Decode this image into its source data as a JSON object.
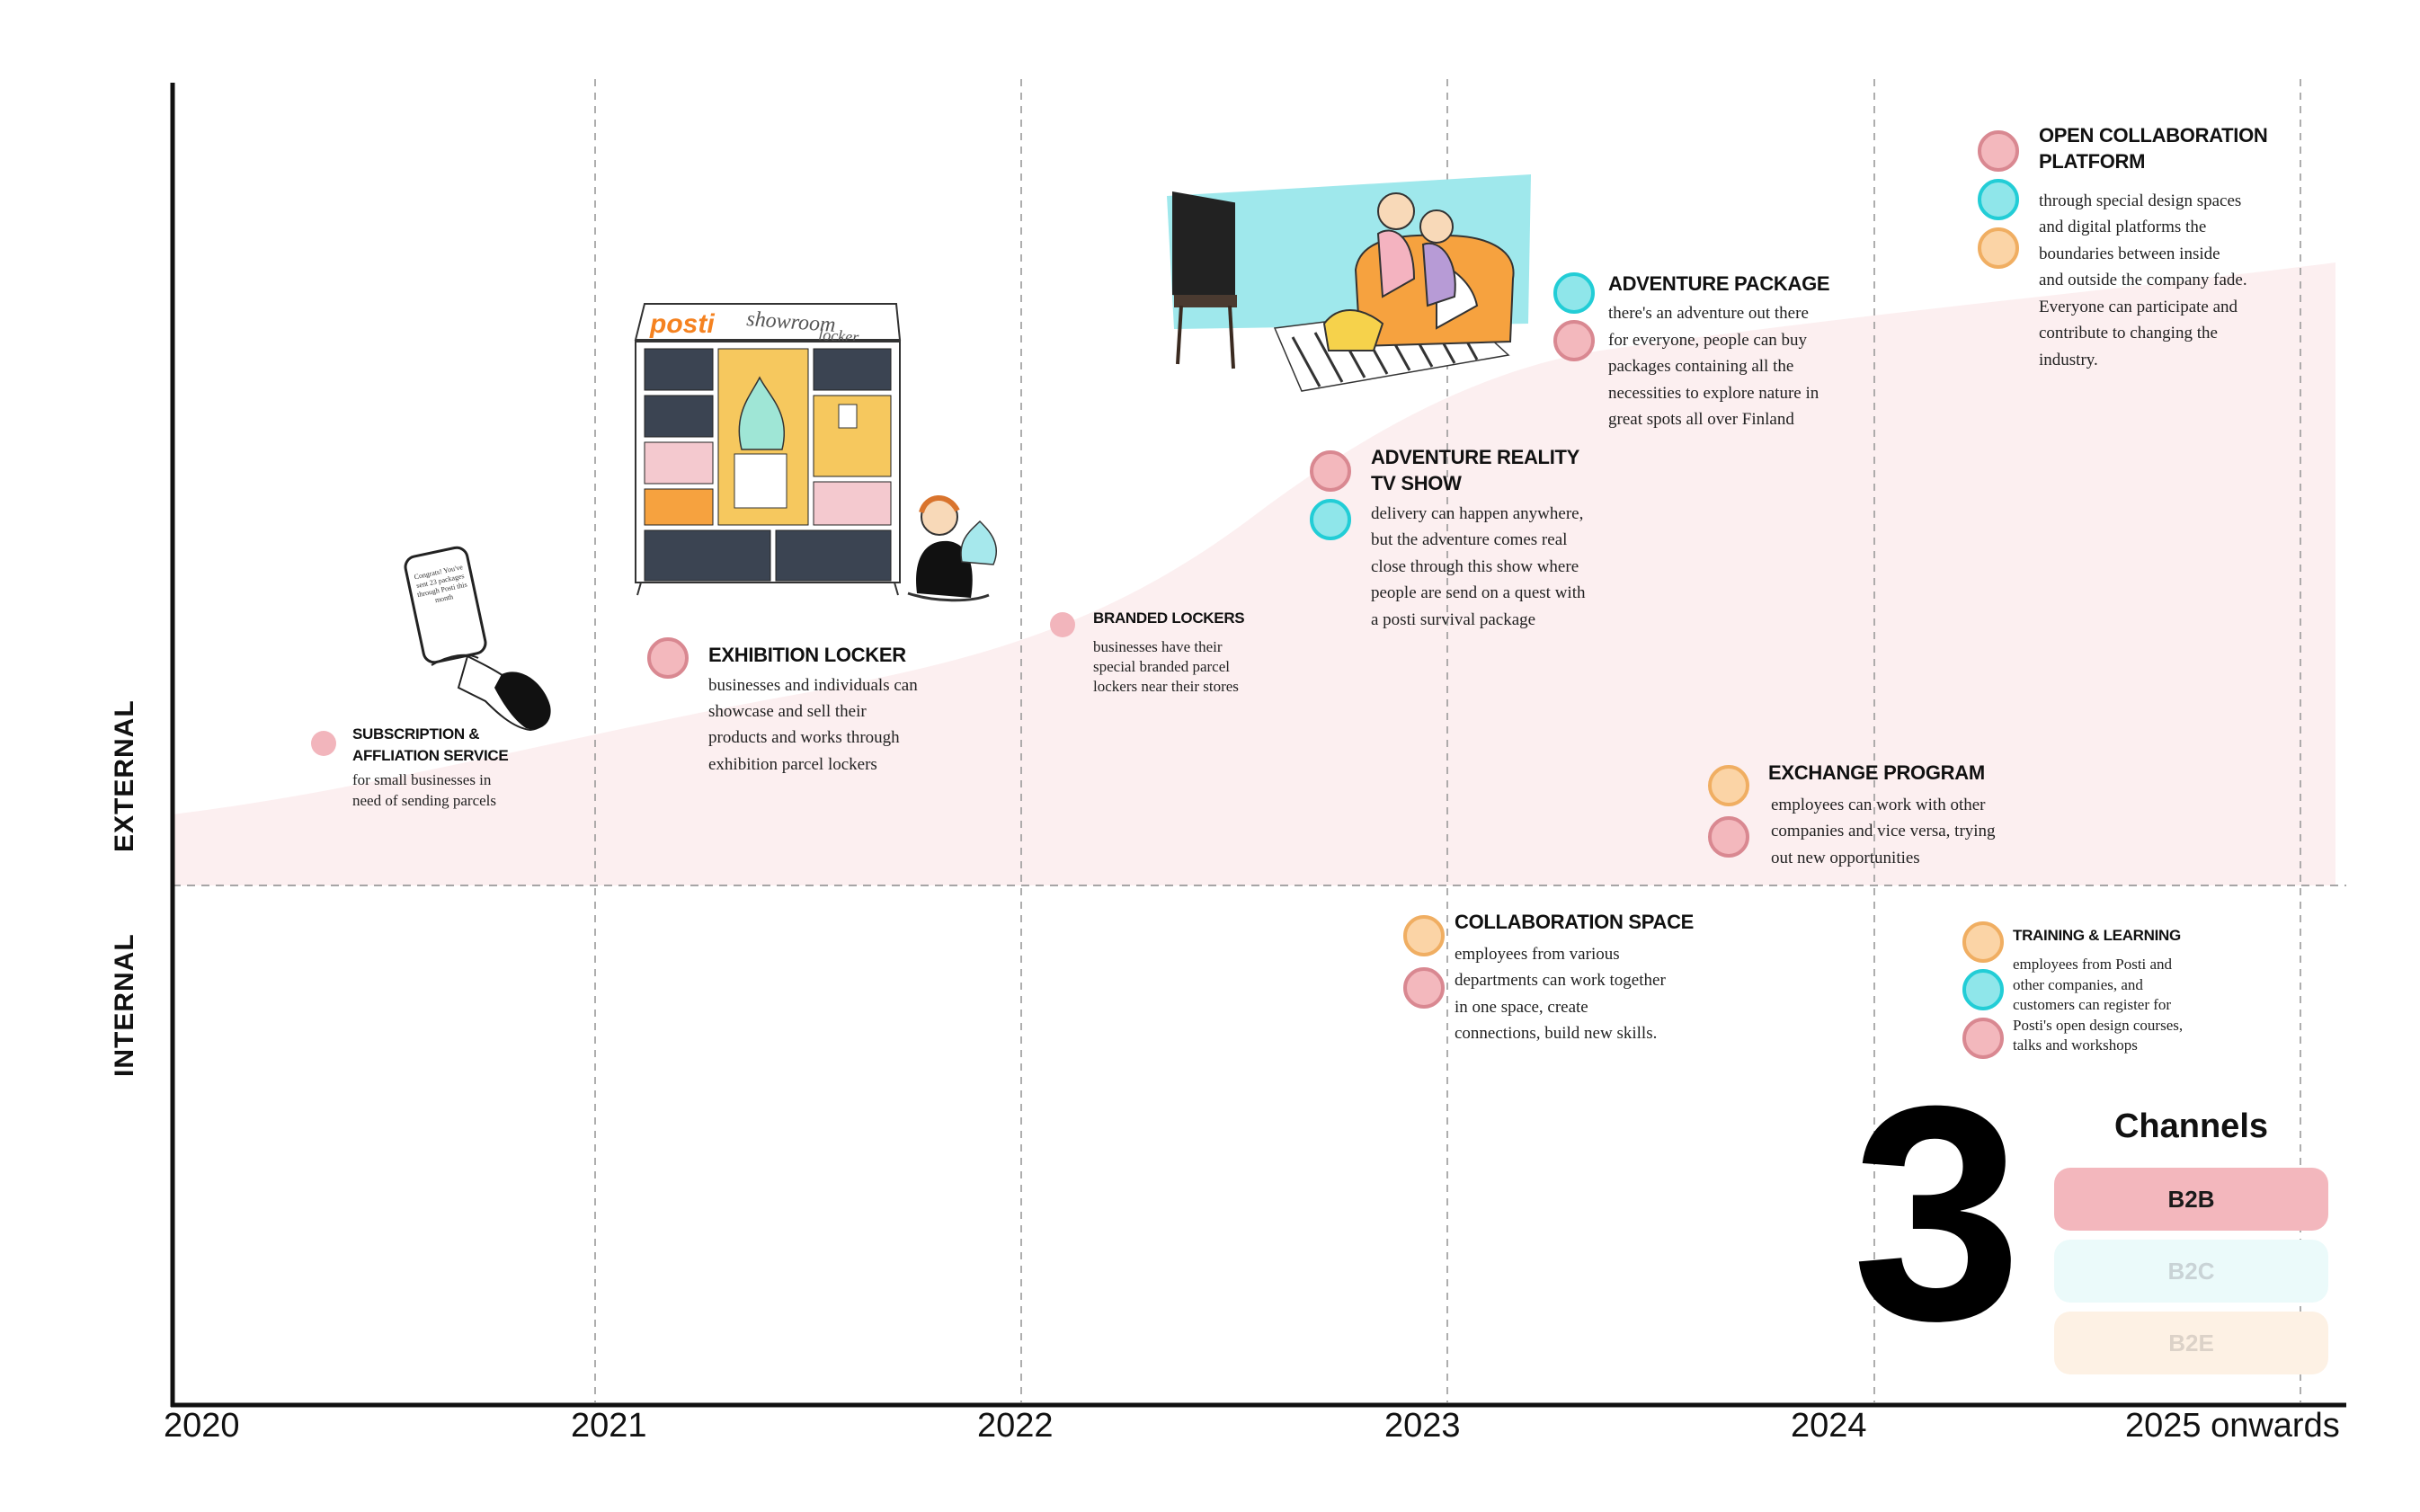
{
  "zones": {
    "external": "EXTERNAL",
    "internal": "INTERNAL"
  },
  "years": [
    "2020",
    "2021",
    "2022",
    "2023",
    "2024",
    "2025 onwards"
  ],
  "items": {
    "subscription": {
      "title_1": "SUBSCRIPTION &",
      "title_2": "AFFLIATION SERVICE",
      "desc_1": "for small businesses in",
      "desc_2": "need of sending parcels"
    },
    "exhibition": {
      "title": "EXHIBITION LOCKER",
      "desc_1": "businesses and individuals can",
      "desc_2": "showcase and sell their",
      "desc_3": "products and works through",
      "desc_4": "exhibition parcel lockers"
    },
    "branded": {
      "title": "BRANDED LOCKERS",
      "desc_1": "businesses have their",
      "desc_2": "special branded parcel",
      "desc_3": "lockers near their stores"
    },
    "reality": {
      "title_1": "ADVENTURE REALITY",
      "title_2": "TV SHOW",
      "desc_1": "delivery can happen anywhere,",
      "desc_2": "but the adventure comes real",
      "desc_3": "close through this show where",
      "desc_4": "people are send on a quest with",
      "desc_5": "a posti survival package"
    },
    "package": {
      "title": "ADVENTURE PACKAGE",
      "desc_1": "there's an adventure out there",
      "desc_2": "for everyone, people can buy",
      "desc_3": "packages containing all the",
      "desc_4": "necessities to explore nature in",
      "desc_5": "great spots all over Finland"
    },
    "open": {
      "title_1": "OPEN COLLABORATION",
      "title_2": "PLATFORM",
      "desc_1": "through special design spaces",
      "desc_2": "and digital platforms the",
      "desc_3": "boundaries between inside",
      "desc_4": "and outside the company fade.",
      "desc_5": "Everyone can participate and",
      "desc_6": "contribute to changing the",
      "desc_7": "industry."
    },
    "exchange": {
      "title": "EXCHANGE PROGRAM",
      "desc_1": "employees can work with other",
      "desc_2": "companies and vice versa, trying",
      "desc_3": "out new opportunities"
    },
    "collab": {
      "title": "COLLABORATION SPACE",
      "desc_1": "employees from various",
      "desc_2": "departments can work together",
      "desc_3": "in one space, create",
      "desc_4": "connections, build new skills."
    },
    "training": {
      "title": "TRAINING & LEARNING",
      "desc_1": "employees from Posti and",
      "desc_2": "other companies, and",
      "desc_3": "customers can register for",
      "desc_4": "Posti's open design courses,",
      "desc_5": "talks and workshops"
    }
  },
  "illustrations": {
    "locker_brand": "posti",
    "locker_label_1": "showroom",
    "locker_label_2": "locker",
    "phone_text": "Congrats! You've sent 23 packages through Posti this month"
  },
  "page_number": "3",
  "legend": {
    "title": "Channels",
    "items": [
      {
        "label": "B2B",
        "bg": "#f3b7bd",
        "fg": "#1a1a1a"
      },
      {
        "label": "B2C",
        "bg": "#ebfafa",
        "fg": "#c9d3d6"
      },
      {
        "label": "B2E",
        "bg": "#fdf1e4",
        "fg": "#dcd2c8"
      }
    ]
  },
  "colors": {
    "b2b": "#f3b8bd",
    "b2c": "#8fe6ea",
    "b2e": "#fbd4a6",
    "band": "#fceff0",
    "axis": "#111111"
  }
}
